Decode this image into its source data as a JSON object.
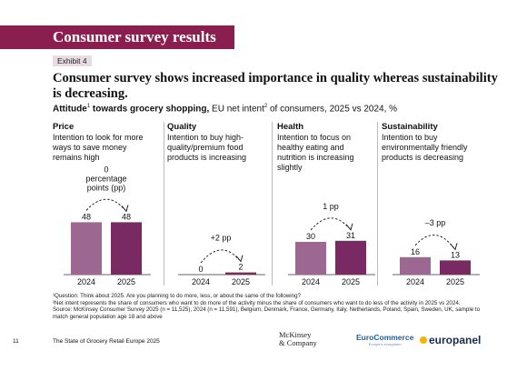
{
  "banner": "Consumer survey results",
  "exhibit": "Exhibit 4",
  "title": "Consumer survey shows increased importance in quality whereas sustainability is decreasing.",
  "subtitle": {
    "bold": "Attitude",
    "sup1": "1",
    "bold2": " towards grocery shopping,",
    "rest": " EU net intent",
    "sup2": "2",
    "rest2": " of consumers, 2025 vs 2024, %"
  },
  "colors": {
    "y2024": "#9c6791",
    "y2025": "#7a2a63",
    "banner": "#8a1f4f"
  },
  "chart_data": [
    {
      "type": "bar",
      "title": "Price",
      "description": "Intention to look for more ways to save money remains high",
      "categories": [
        "2024",
        "2025"
      ],
      "values": [
        48,
        48
      ],
      "change_label": "0 percentage points (pp)"
    },
    {
      "type": "bar",
      "title": "Quality",
      "description": "Intention to buy high-quality/premium food products is increasing",
      "categories": [
        "2024",
        "2025"
      ],
      "values": [
        0,
        2
      ],
      "change_label": "+2 pp"
    },
    {
      "type": "bar",
      "title": "Health",
      "description": "Intention to focus on healthy eating and nutrition is increasing slightly",
      "categories": [
        "2024",
        "2025"
      ],
      "values": [
        30,
        31
      ],
      "change_label": "1 pp"
    },
    {
      "type": "bar",
      "title": "Sustainability",
      "description": "Intention to buy environmentally friendly products is decreasing",
      "categories": [
        "2024",
        "2025"
      ],
      "values": [
        16,
        13
      ],
      "change_label": "–3 pp"
    }
  ],
  "footnotes": [
    "¹Question: Think about 2025. Are you planning to do more, less, or about the same of the following?",
    "²Net intent represents the share of consumers who want to do more of the activity minus the share of consumers who want to do less of the activity in 2025 vs 2024.",
    "Source: McKinsey Consumer Survey 2025 (n = 11,525), 2024 (n = 11,591), Belgium, Denmark, France, Germany, Italy, Netherlands, Poland, Spain, Sweden, UK, sample to match general population age 18 and above"
  ],
  "footer": {
    "page": "11",
    "report": "The State of Grocery Retail Europe 2025",
    "logo1_line1": "McKinsey",
    "logo1_line2": "& Company",
    "logo2": "EuroCommerce",
    "logo2_sub": "Europe's ecosystem",
    "logo3": "europanel"
  }
}
